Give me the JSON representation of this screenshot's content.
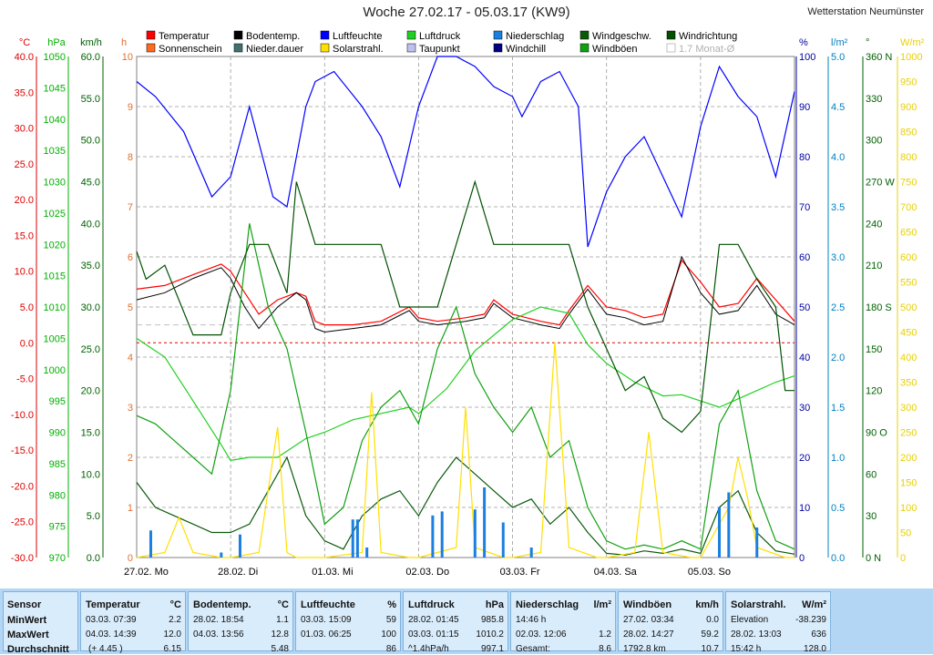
{
  "title": "Woche 27.02.17 - 05.03.17 (KW9)",
  "station": "Wetterstation Neumünster",
  "colors": {
    "axis_c": "#e00000",
    "axis_hpa": "#00b000",
    "axis_kmh": "#006000",
    "axis_h": "#e07030",
    "axis_pct": "#0000a0",
    "axis_lm2": "#0080c0",
    "axis_deg": "#006000",
    "axis_wm2": "#e8d000"
  },
  "legend": [
    {
      "label": "Temperatur",
      "color": "#ff0000"
    },
    {
      "label": "Sonnenschein",
      "color": "#ff6a20"
    },
    {
      "label": "Bodentemp.",
      "color": "#000000"
    },
    {
      "label": "Nieder.dauer",
      "color": "#407070"
    },
    {
      "label": "Luftfeuchte",
      "color": "#0000ff"
    },
    {
      "label": "Solarstrahl.",
      "color": "#ffe000"
    },
    {
      "label": "Luftdruck",
      "color": "#20d020"
    },
    {
      "label": "Taupunkt",
      "color": "#c0c0f0"
    },
    {
      "label": "Niederschlag",
      "color": "#1a7fe0"
    },
    {
      "label": "Windchill",
      "color": "#000080"
    },
    {
      "label": "Windgeschw.",
      "color": "#0a5a0a"
    },
    {
      "label": "Windböen",
      "color": "#10a010"
    },
    {
      "label": "Windrichtung",
      "color": "#005000"
    },
    {
      "label": "1.7 Monat-Ø",
      "color": "#c0c0c0"
    }
  ],
  "chart_data": {
    "type": "line",
    "title": "Woche 27.02.17 - 05.03.17 (KW9)",
    "days": [
      "27.02.  Mo",
      "28.02.  Di",
      "01.03.  Mi",
      "02.03.  Do",
      "03.03.  Fr",
      "04.03.  Sa",
      "05.03.  So"
    ],
    "axes": {
      "temp_c": {
        "unit": "°C",
        "ylim": [
          -30,
          40
        ],
        "ticks": [
          "40.0",
          "35.0",
          "30.0",
          "25.0",
          "20.0",
          "15.0",
          "10.0",
          "5.0",
          "0.0",
          "-5.0",
          "-10.0",
          "-15.0",
          "-20.0",
          "-25.0",
          "-30.0"
        ]
      },
      "pressure_hpa": {
        "unit": "hPa",
        "ylim": [
          970,
          1050
        ],
        "ticks": [
          "1050",
          "1045",
          "1040",
          "1035",
          "1030",
          "1025",
          "1020",
          "1015",
          "1010",
          "1005",
          "1000",
          "995",
          "990",
          "985",
          "980",
          "975",
          "970"
        ]
      },
      "wind_kmh": {
        "unit": "km/h",
        "ylim": [
          0,
          60
        ],
        "ticks": [
          "60.0",
          "55.0",
          "50.0",
          "45.0",
          "40.0",
          "35.0",
          "30.0",
          "25.0",
          "20.0",
          "15.0",
          "10.0",
          "5.0",
          "0.0"
        ]
      },
      "sun_h": {
        "unit": "h",
        "ylim": [
          0,
          10
        ],
        "ticks": [
          "10",
          "9",
          "8",
          "7",
          "6",
          "5",
          "4",
          "3",
          "2",
          "1",
          "0"
        ]
      },
      "humidity_pct": {
        "unit": "%",
        "ylim": [
          0,
          100
        ],
        "ticks": [
          "100",
          "90",
          "80",
          "70",
          "60",
          "50",
          "40",
          "30",
          "20",
          "10",
          "0"
        ]
      },
      "rain_lm2": {
        "unit": "l/m²",
        "ylim": [
          0,
          5
        ],
        "ticks": [
          "5.0",
          "4.5",
          "4.0",
          "3.5",
          "3.0",
          "2.5",
          "2.0",
          "1.5",
          "1.0",
          "0.5",
          "0.0"
        ]
      },
      "wind_dir_deg": {
        "unit": "°",
        "ylim": [
          0,
          360
        ],
        "ticks": [
          "360 N",
          "330",
          "300",
          "270 W",
          "240",
          "210",
          "180 S",
          "150",
          "120",
          "90  O",
          "60",
          "30",
          "0   N"
        ]
      },
      "solar_wm2": {
        "unit": "W/m²",
        "ylim": [
          0,
          1000
        ],
        "ticks": [
          "1000",
          "950",
          "900",
          "850",
          "800",
          "750",
          "700",
          "650",
          "600",
          "550",
          "500",
          "450",
          "400",
          "350",
          "300",
          "250",
          "200",
          "150",
          "100",
          "50",
          "0"
        ]
      }
    },
    "series": [
      {
        "name": "Temperatur",
        "axis": "temp_c",
        "color": "#ff0000",
        "x": [
          0,
          0.3,
          0.6,
          0.9,
          1.0,
          1.15,
          1.3,
          1.5,
          1.7,
          1.8,
          1.9,
          2.0,
          2.3,
          2.6,
          2.9,
          3.0,
          3.2,
          3.5,
          3.7,
          3.8,
          4.0,
          4.3,
          4.5,
          4.6,
          4.8,
          5.0,
          5.2,
          5.4,
          5.6,
          5.8,
          6.0,
          6.2,
          6.4,
          6.6,
          6.8,
          7.0
        ],
        "y": [
          7.5,
          8,
          9.5,
          11,
          10,
          7,
          4,
          6,
          7,
          6.5,
          3,
          2.5,
          2.5,
          3,
          5,
          3.5,
          3,
          3.5,
          4,
          6,
          4,
          3,
          2.5,
          4.5,
          8,
          5,
          4.5,
          3.5,
          4,
          11.5,
          8.5,
          5,
          5.5,
          9,
          6,
          3
        ]
      },
      {
        "name": "Bodentemp.",
        "axis": "temp_c",
        "color": "#000000",
        "x": [
          0,
          0.3,
          0.6,
          0.9,
          1.0,
          1.15,
          1.3,
          1.5,
          1.7,
          1.8,
          1.9,
          2.0,
          2.3,
          2.6,
          2.9,
          3.0,
          3.2,
          3.5,
          3.7,
          3.8,
          4.0,
          4.3,
          4.5,
          4.6,
          4.8,
          5.0,
          5.2,
          5.4,
          5.6,
          5.8,
          6.0,
          6.2,
          6.4,
          6.6,
          6.8,
          7.0
        ],
        "y": [
          6,
          7,
          9,
          10.5,
          9,
          5,
          2,
          5,
          7,
          6,
          2,
          1.5,
          2,
          2.5,
          4.5,
          3,
          2.5,
          3,
          3.5,
          5.5,
          3.5,
          2.5,
          2,
          4,
          7.5,
          4,
          3.5,
          2.5,
          3,
          12,
          7,
          4,
          4.5,
          8,
          4,
          2.5
        ]
      },
      {
        "name": "Luftfeuchte",
        "axis": "humidity_pct",
        "color": "#0000ff",
        "x": [
          0,
          0.2,
          0.5,
          0.8,
          1.0,
          1.2,
          1.45,
          1.6,
          1.8,
          1.9,
          2.1,
          2.4,
          2.6,
          2.8,
          3.0,
          3.2,
          3.4,
          3.6,
          3.8,
          4.0,
          4.1,
          4.3,
          4.5,
          4.7,
          4.8,
          5.0,
          5.2,
          5.4,
          5.6,
          5.8,
          6.0,
          6.2,
          6.4,
          6.6,
          6.8,
          7.0
        ],
        "y": [
          95,
          92,
          85,
          72,
          76,
          90,
          72,
          70,
          90,
          95,
          97,
          90,
          84,
          74,
          90,
          100,
          100,
          98,
          94,
          92,
          88,
          95,
          97,
          90,
          62,
          73,
          80,
          84,
          76,
          68,
          86,
          98,
          92,
          88,
          76,
          93
        ]
      },
      {
        "name": "Luftdruck",
        "axis": "pressure_hpa",
        "color": "#20d020",
        "x": [
          0,
          0.3,
          0.6,
          0.9,
          1.0,
          1.2,
          1.5,
          1.8,
          2.0,
          2.3,
          2.6,
          2.9,
          3.0,
          3.3,
          3.6,
          4.0,
          4.3,
          4.6,
          4.8,
          5.0,
          5.3,
          5.6,
          5.8,
          6.0,
          6.2,
          6.5,
          6.8,
          7.0
        ],
        "y": [
          1005,
          1002,
          995,
          988,
          985.5,
          986,
          986,
          989,
          990,
          992,
          993,
          994,
          993,
          997,
          1003,
          1008,
          1010,
          1009,
          1004,
          1001,
          998,
          995.8,
          996,
          995,
          994,
          996,
          998,
          999
        ]
      },
      {
        "name": "Windgeschw.",
        "axis": "wind_kmh",
        "color": "#0a5a0a",
        "x": [
          0,
          0.2,
          0.4,
          0.6,
          0.8,
          1.0,
          1.2,
          1.4,
          1.6,
          1.8,
          2.0,
          2.2,
          2.4,
          2.6,
          2.8,
          3.0,
          3.2,
          3.4,
          3.6,
          3.8,
          4.0,
          4.2,
          4.4,
          4.6,
          4.8,
          5.0,
          5.2,
          5.4,
          5.6,
          5.8,
          6.0,
          6.2,
          6.4,
          6.6,
          6.8,
          7.0
        ],
        "y": [
          9,
          6,
          5,
          4,
          3,
          3,
          4,
          8,
          12,
          5,
          2,
          1,
          5,
          7,
          8,
          5,
          9,
          12,
          10,
          8,
          6,
          7,
          4,
          6,
          3,
          0.5,
          0.3,
          0.8,
          0.5,
          1,
          0.5,
          6,
          8,
          3,
          0.8,
          0.4
        ]
      },
      {
        "name": "Windböen",
        "axis": "wind_kmh",
        "color": "#10a010",
        "x": [
          0,
          0.2,
          0.4,
          0.6,
          0.8,
          1.0,
          1.2,
          1.4,
          1.6,
          1.8,
          2.0,
          2.2,
          2.4,
          2.6,
          2.8,
          3.0,
          3.2,
          3.4,
          3.6,
          3.8,
          4.0,
          4.2,
          4.4,
          4.6,
          4.8,
          5.0,
          5.2,
          5.4,
          5.6,
          5.8,
          6.0,
          6.2,
          6.4,
          6.6,
          6.8,
          7.0
        ],
        "y": [
          17,
          16,
          14,
          12,
          10,
          20,
          40,
          30,
          25,
          15,
          4,
          6,
          14,
          18,
          20,
          16,
          25,
          30,
          22,
          18,
          15,
          18,
          12,
          14,
          6,
          2,
          1,
          1.5,
          1,
          2,
          1,
          16,
          20,
          8,
          2,
          1
        ]
      },
      {
        "name": "Windrichtung",
        "axis": "wind_dir_deg",
        "color": "#005000",
        "x": [
          0,
          0.1,
          0.3,
          0.6,
          0.9,
          1.0,
          1.2,
          1.4,
          1.6,
          1.7,
          1.9,
          2.0,
          2.3,
          2.6,
          2.8,
          3.0,
          3.2,
          3.4,
          3.6,
          3.8,
          4.0,
          4.3,
          4.6,
          4.8,
          5.0,
          5.2,
          5.4,
          5.6,
          5.8,
          6.0,
          6.2,
          6.4,
          6.6,
          6.8,
          6.9,
          7.0
        ],
        "y": [
          220,
          200,
          210,
          160,
          160,
          190,
          225,
          225,
          190,
          270,
          225,
          225,
          225,
          225,
          180,
          180,
          180,
          225,
          270,
          225,
          225,
          225,
          225,
          180,
          150,
          120,
          130,
          100,
          90,
          105,
          225,
          225,
          200,
          180,
          120,
          120
        ]
      },
      {
        "name": "Solarstrahl.",
        "axis": "solar_wm2",
        "color": "#ffe000",
        "x": [
          0,
          0.3,
          0.45,
          0.6,
          0.9,
          1.0,
          1.3,
          1.5,
          1.6,
          1.7,
          2.0,
          2.4,
          2.5,
          2.6,
          2.9,
          3.0,
          3.4,
          3.5,
          3.6,
          3.9,
          4.0,
          4.3,
          4.45,
          4.6,
          4.9,
          5.0,
          5.3,
          5.45,
          5.6,
          5.9,
          6.0,
          6.3,
          6.4,
          6.5,
          6.6,
          6.9,
          7.0
        ],
        "y": [
          0,
          10,
          80,
          10,
          0,
          0,
          10,
          260,
          10,
          0,
          0,
          10,
          330,
          10,
          0,
          0,
          20,
          300,
          20,
          0,
          0,
          10,
          430,
          20,
          0,
          0,
          10,
          250,
          10,
          0,
          0,
          100,
          200,
          120,
          20,
          0,
          0
        ]
      },
      {
        "name": "Niederschlag",
        "axis": "rain_lm2",
        "color": "#1a7fe0",
        "x": [
          0.15,
          0.9,
          1.1,
          2.3,
          2.35,
          2.45,
          3.15,
          3.25,
          3.6,
          3.7,
          3.9,
          4.2,
          6.2,
          6.3,
          6.6
        ],
        "y": [
          0.27,
          0.05,
          0.23,
          0.38,
          0.38,
          0.1,
          0.42,
          0.46,
          0.48,
          0.7,
          0.35,
          0.1,
          0.5,
          0.65,
          0.3
        ]
      }
    ],
    "grid": true,
    "legend_position": "top"
  },
  "stats": {
    "headers": {
      "sensor": "Sensor",
      "min": "MinWert",
      "max": "MaxWert",
      "avg": "Durchschnitt"
    },
    "temperature": {
      "title": "Temperatur",
      "unit": "°C",
      "min_time": "03.03.  07:39",
      "min_val": "2.2",
      "max_time": "04.03.  14:39",
      "max_val": "12.0",
      "avg_label": "(+ 4.45 )",
      "avg_val": "6.15"
    },
    "ground": {
      "title": "Bodentemp.",
      "unit": "°C",
      "min_time": "28.02.  18:54",
      "min_val": "1.1",
      "max_time": "04.03.  13:56",
      "max_val": "12.8",
      "avg_val": "5.48"
    },
    "humidity": {
      "title": "Luftfeuchte",
      "unit": "%",
      "min_time": "03.03.  15:09",
      "min_val": "59",
      "max_time": "01.03.  06:25",
      "max_val": "100",
      "avg_val": "86"
    },
    "pressure": {
      "title": "Luftdruck",
      "unit": "hPa",
      "min_time": "28.02.  01:45",
      "min_val": "985.8",
      "max_time": "03.03.  01:15",
      "max_val": "1010.2",
      "avg_label": "^1.4hPa/h",
      "avg_val": "997.1"
    },
    "rain": {
      "title": "Niederschlag",
      "unit": "l/m²",
      "row1": "14:46 h",
      "max_time": "02.03.  12:06",
      "max_val": "1.2",
      "avg_label": "Gesamt:",
      "avg_val": "8.6"
    },
    "gusts": {
      "title": "Windböen",
      "unit": "km/h",
      "min_time": "27.02.  03:34",
      "min_val": "0.0",
      "max_time": "28.02.  14:27",
      "max_val": "59.2",
      "avg_label": "1792.8 km",
      "avg_val": "10.7"
    },
    "solar": {
      "title": "Solarstrahl.",
      "unit": "W/m²",
      "min_label": "Elevation",
      "min_val": "-38.239",
      "max_time": "28.02.  13:03",
      "max_val": "636",
      "avg_label": "15:42 h",
      "avg_val": "128.0"
    }
  }
}
